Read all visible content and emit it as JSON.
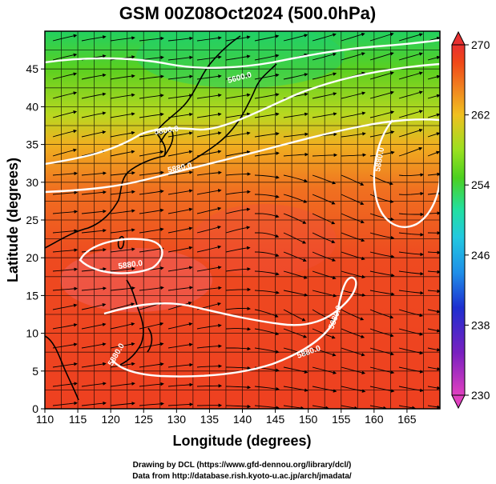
{
  "title": "GSM 00Z08Oct2024 (500.0hPa)",
  "x_axis": {
    "label": "Longitude (degrees)",
    "range": [
      110,
      170
    ],
    "ticks": [
      "110",
      "115",
      "120",
      "125",
      "130",
      "135",
      "140",
      "145",
      "150",
      "155",
      "160",
      "165"
    ],
    "tick_values": [
      110,
      115,
      120,
      125,
      130,
      135,
      140,
      145,
      150,
      155,
      160,
      165
    ]
  },
  "y_axis": {
    "label": "Latitude  (degrees)",
    "range": [
      0,
      50
    ],
    "ticks": [
      "0",
      "5",
      "10",
      "15",
      "20",
      "25",
      "30",
      "35",
      "40",
      "45"
    ],
    "tick_values": [
      0,
      5,
      10,
      15,
      20,
      25,
      30,
      35,
      40,
      45
    ]
  },
  "colorbar": {
    "range": [
      230,
      270
    ],
    "labels": [
      "270",
      "262",
      "254",
      "246",
      "238",
      "230"
    ],
    "label_values": [
      270,
      262,
      254,
      246,
      238,
      230
    ],
    "colors": [
      "#e040c0",
      "#7a20c0",
      "#1e2fd0",
      "#1f8fe8",
      "#22c8e0",
      "#22e0a0",
      "#4cd020",
      "#9ae020",
      "#f0c020",
      "#f08020",
      "#f04818",
      "#e83030"
    ]
  },
  "contour_labels": [
    "5600.0",
    "5800.0",
    "5880.0",
    "5880.0",
    "5880.0",
    "5880.0",
    "5880.0",
    "5880.0"
  ],
  "credits": [
    "Drawing by DCL (https://www.gfd-dennou.org/library/dcl/)",
    "Data from http://database.rish.kyoto-u.ac.jp/arch/jmadata/"
  ],
  "colors": {
    "contour": "#ffffff",
    "coast": "#000000",
    "streamline": "#000000"
  }
}
